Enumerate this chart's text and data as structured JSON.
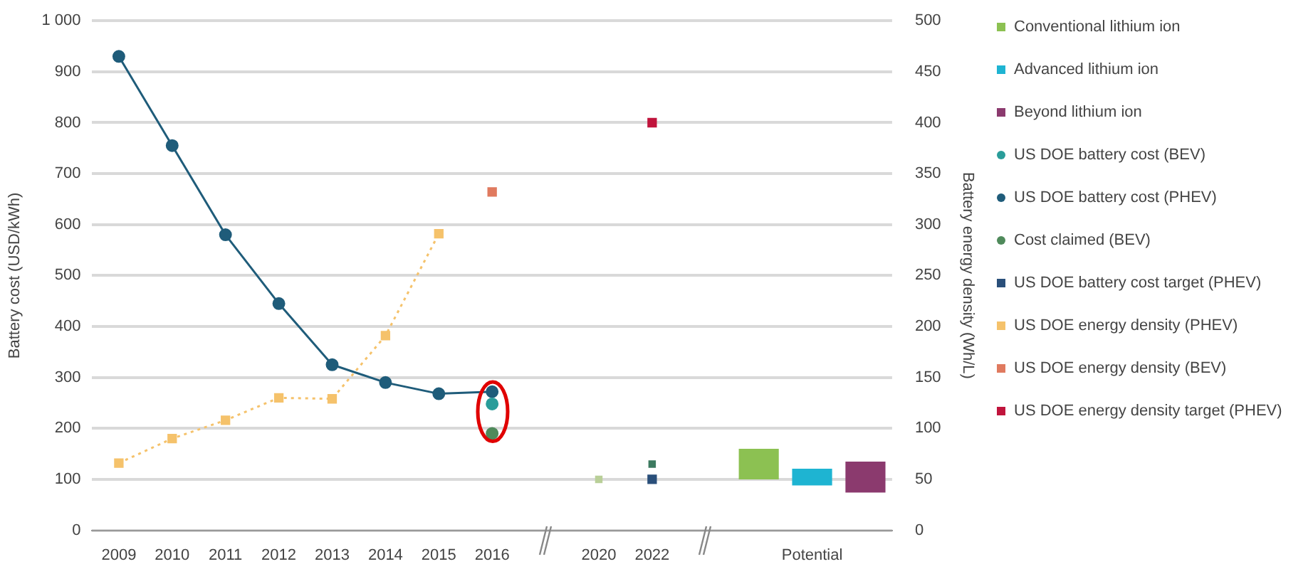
{
  "chart_data": {
    "type": "line",
    "ylabel": "Battery cost (USD/kWh)",
    "y2label": "Battery energy density (Wh/L)",
    "categories": [
      "2009",
      "2010",
      "2011",
      "2012",
      "2013",
      "2014",
      "2015",
      "2016",
      null,
      "2020",
      "2022",
      null,
      null,
      "Potential",
      null
    ],
    "ylim": [
      0,
      1000
    ],
    "yticks": [
      0,
      100,
      200,
      300,
      400,
      500,
      600,
      700,
      800,
      900,
      {
        "value": 1000,
        "label": "1 000"
      }
    ],
    "y2lim": [
      0,
      500
    ],
    "y2ticks": [
      0,
      50,
      100,
      150,
      200,
      250,
      300,
      350,
      400,
      450,
      500
    ],
    "grid": "y",
    "legend": "right",
    "series": [
      {
        "name": "Conventional lithium ion",
        "type": "bar",
        "color": "#8cc152",
        "base": [
          null,
          null,
          null,
          null,
          null,
          null,
          null,
          null,
          null,
          null,
          null,
          null,
          100,
          null,
          null
        ],
        "values": [
          null,
          null,
          null,
          null,
          null,
          null,
          null,
          null,
          null,
          null,
          null,
          null,
          60,
          null,
          null
        ]
      },
      {
        "name": "Advanced lithium ion",
        "type": "bar",
        "color": "#1eb4d2",
        "base": [
          null,
          null,
          null,
          null,
          null,
          null,
          null,
          null,
          null,
          null,
          null,
          null,
          null,
          88,
          null
        ],
        "values": [
          null,
          null,
          null,
          null,
          null,
          null,
          null,
          null,
          null,
          null,
          null,
          null,
          null,
          33,
          null
        ]
      },
      {
        "name": "Beyond lithium ion",
        "type": "bar",
        "color": "#8b3a6e",
        "base": [
          null,
          null,
          null,
          null,
          null,
          null,
          null,
          null,
          null,
          null,
          null,
          null,
          null,
          null,
          74
        ],
        "values": [
          null,
          null,
          null,
          null,
          null,
          null,
          null,
          null,
          null,
          null,
          null,
          null,
          null,
          null,
          61
        ]
      },
      {
        "name": "US DOE battery cost (BEV)",
        "type": "scatter",
        "marker": "circle",
        "color": "#2a9d9a",
        "values": [
          null,
          null,
          null,
          null,
          null,
          null,
          null,
          248,
          null,
          null,
          null,
          null,
          null,
          null,
          null
        ]
      },
      {
        "name": "US DOE battery cost (PHEV)",
        "marker": "circle",
        "color": "#1f5c7a",
        "values": [
          930,
          755,
          580,
          445,
          325,
          290,
          268,
          272,
          null,
          null,
          null,
          null,
          null,
          null,
          null
        ]
      },
      {
        "name": "Cost claimed (BEV)",
        "type": "scatter",
        "marker": "circle",
        "color": "#4f8a5b",
        "values": [
          null,
          null,
          null,
          null,
          null,
          null,
          null,
          190,
          null,
          null,
          null,
          null,
          null,
          null,
          null
        ]
      },
      {
        "type": "scatter",
        "marker": "square",
        "color": "#3d7a60",
        "values": [
          null,
          null,
          null,
          null,
          null,
          null,
          null,
          null,
          null,
          null,
          130,
          null,
          null,
          null,
          null
        ]
      },
      {
        "type": "scatter",
        "marker": "square",
        "color": "#b9cf98",
        "values": [
          null,
          null,
          null,
          null,
          null,
          null,
          null,
          null,
          null,
          100,
          null,
          null,
          null,
          null,
          null
        ]
      },
      {
        "name": "US DOE battery cost target (PHEV)",
        "type": "scatter",
        "marker": "square",
        "color": "#2a4f7a",
        "values": [
          null,
          null,
          null,
          null,
          null,
          null,
          null,
          null,
          null,
          null,
          100,
          null,
          null,
          null,
          null
        ]
      },
      {
        "name": "US DOE energy density (PHEV)",
        "type": "line",
        "marker": "square",
        "line_style": "dotted",
        "axis": "y2",
        "color": "#f5c26b",
        "values": [
          66,
          90,
          108,
          130,
          129,
          191,
          291,
          null,
          null,
          null,
          null,
          null,
          null,
          null,
          null
        ]
      },
      {
        "name": "US DOE energy density (BEV)",
        "type": "scatter",
        "marker": "square",
        "axis": "y2",
        "color": "#e07a5f",
        "values": [
          null,
          null,
          null,
          null,
          null,
          null,
          null,
          332,
          null,
          null,
          null,
          null,
          null,
          null,
          null
        ]
      },
      {
        "name": "US DOE energy density target (PHEV)",
        "type": "scatter",
        "marker": "square",
        "axis": "y2",
        "color": "#c0143c",
        "values": [
          null,
          null,
          null,
          null,
          null,
          null,
          null,
          null,
          null,
          null,
          400,
          null,
          null,
          null,
          null
        ]
      }
    ]
  }
}
